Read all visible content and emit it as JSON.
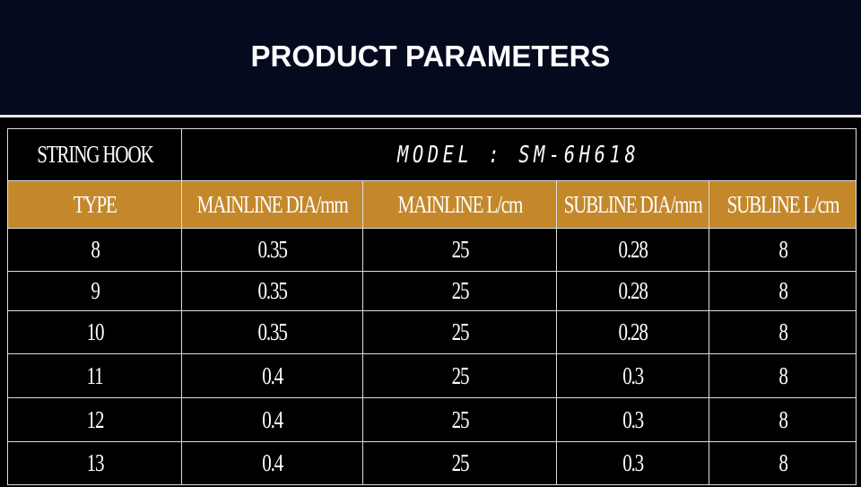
{
  "header": {
    "title": "PRODUCT PARAMETERS"
  },
  "table": {
    "label": "STRING HOOK",
    "model": "MODEL : SM-6H618",
    "columns": [
      "TYPE",
      "MAINLINE DIA/mm",
      "MAINLINE L/cm",
      "SUBLINE DIA/mm",
      "SUBLINE L/cm"
    ],
    "rows": [
      [
        "8",
        "0.35",
        "25",
        "0.28",
        "8"
      ],
      [
        "9",
        "0.35",
        "25",
        "0.28",
        "8"
      ],
      [
        "10",
        "0.35",
        "25",
        "0.28",
        "8"
      ],
      [
        "11",
        "0.4",
        "25",
        "0.3",
        "8"
      ],
      [
        "12",
        "0.4",
        "25",
        "0.3",
        "8"
      ],
      [
        "13",
        "0.4",
        "25",
        "0.3",
        "8"
      ]
    ]
  }
}
